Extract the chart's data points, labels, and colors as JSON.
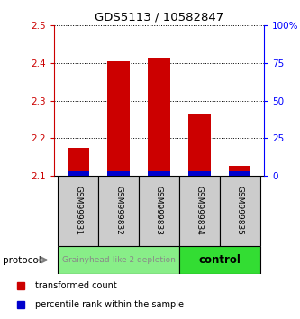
{
  "title": "GDS5113 / 10582847",
  "samples": [
    "GSM999831",
    "GSM999832",
    "GSM999833",
    "GSM999834",
    "GSM999835"
  ],
  "transformed_counts": [
    2.175,
    2.405,
    2.415,
    2.265,
    2.125
  ],
  "ylim_left": [
    2.1,
    2.5
  ],
  "ylim_right": [
    0,
    100
  ],
  "yticks_left": [
    2.1,
    2.2,
    2.3,
    2.4,
    2.5
  ],
  "yticks_right": [
    0,
    25,
    50,
    75,
    100
  ],
  "ytick_labels_right": [
    "0",
    "25",
    "50",
    "75",
    "100%"
  ],
  "bar_bottom": 2.1,
  "bar_width": 0.55,
  "red_color": "#cc0000",
  "blue_color": "#0000cc",
  "groups": [
    {
      "label": "Grainyhead-like 2 depletion",
      "samples_range": [
        0,
        2
      ],
      "color": "#88ee88",
      "text_color": "#888888",
      "fontsize": 6.5,
      "fontweight": "normal"
    },
    {
      "label": "control",
      "samples_range": [
        3,
        4
      ],
      "color": "#33dd33",
      "text_color": "#000000",
      "fontsize": 8.5,
      "fontweight": "bold"
    }
  ],
  "protocol_label": "protocol",
  "legend_items": [
    {
      "color": "#cc0000",
      "label": "transformed count"
    },
    {
      "color": "#0000cc",
      "label": "percentile rank within the sample"
    }
  ],
  "blue_bar_height": 0.012,
  "sample_box_color": "#cccccc",
  "sample_box_border": "#000000",
  "fig_width": 3.33,
  "fig_height": 3.54,
  "dpi": 100
}
